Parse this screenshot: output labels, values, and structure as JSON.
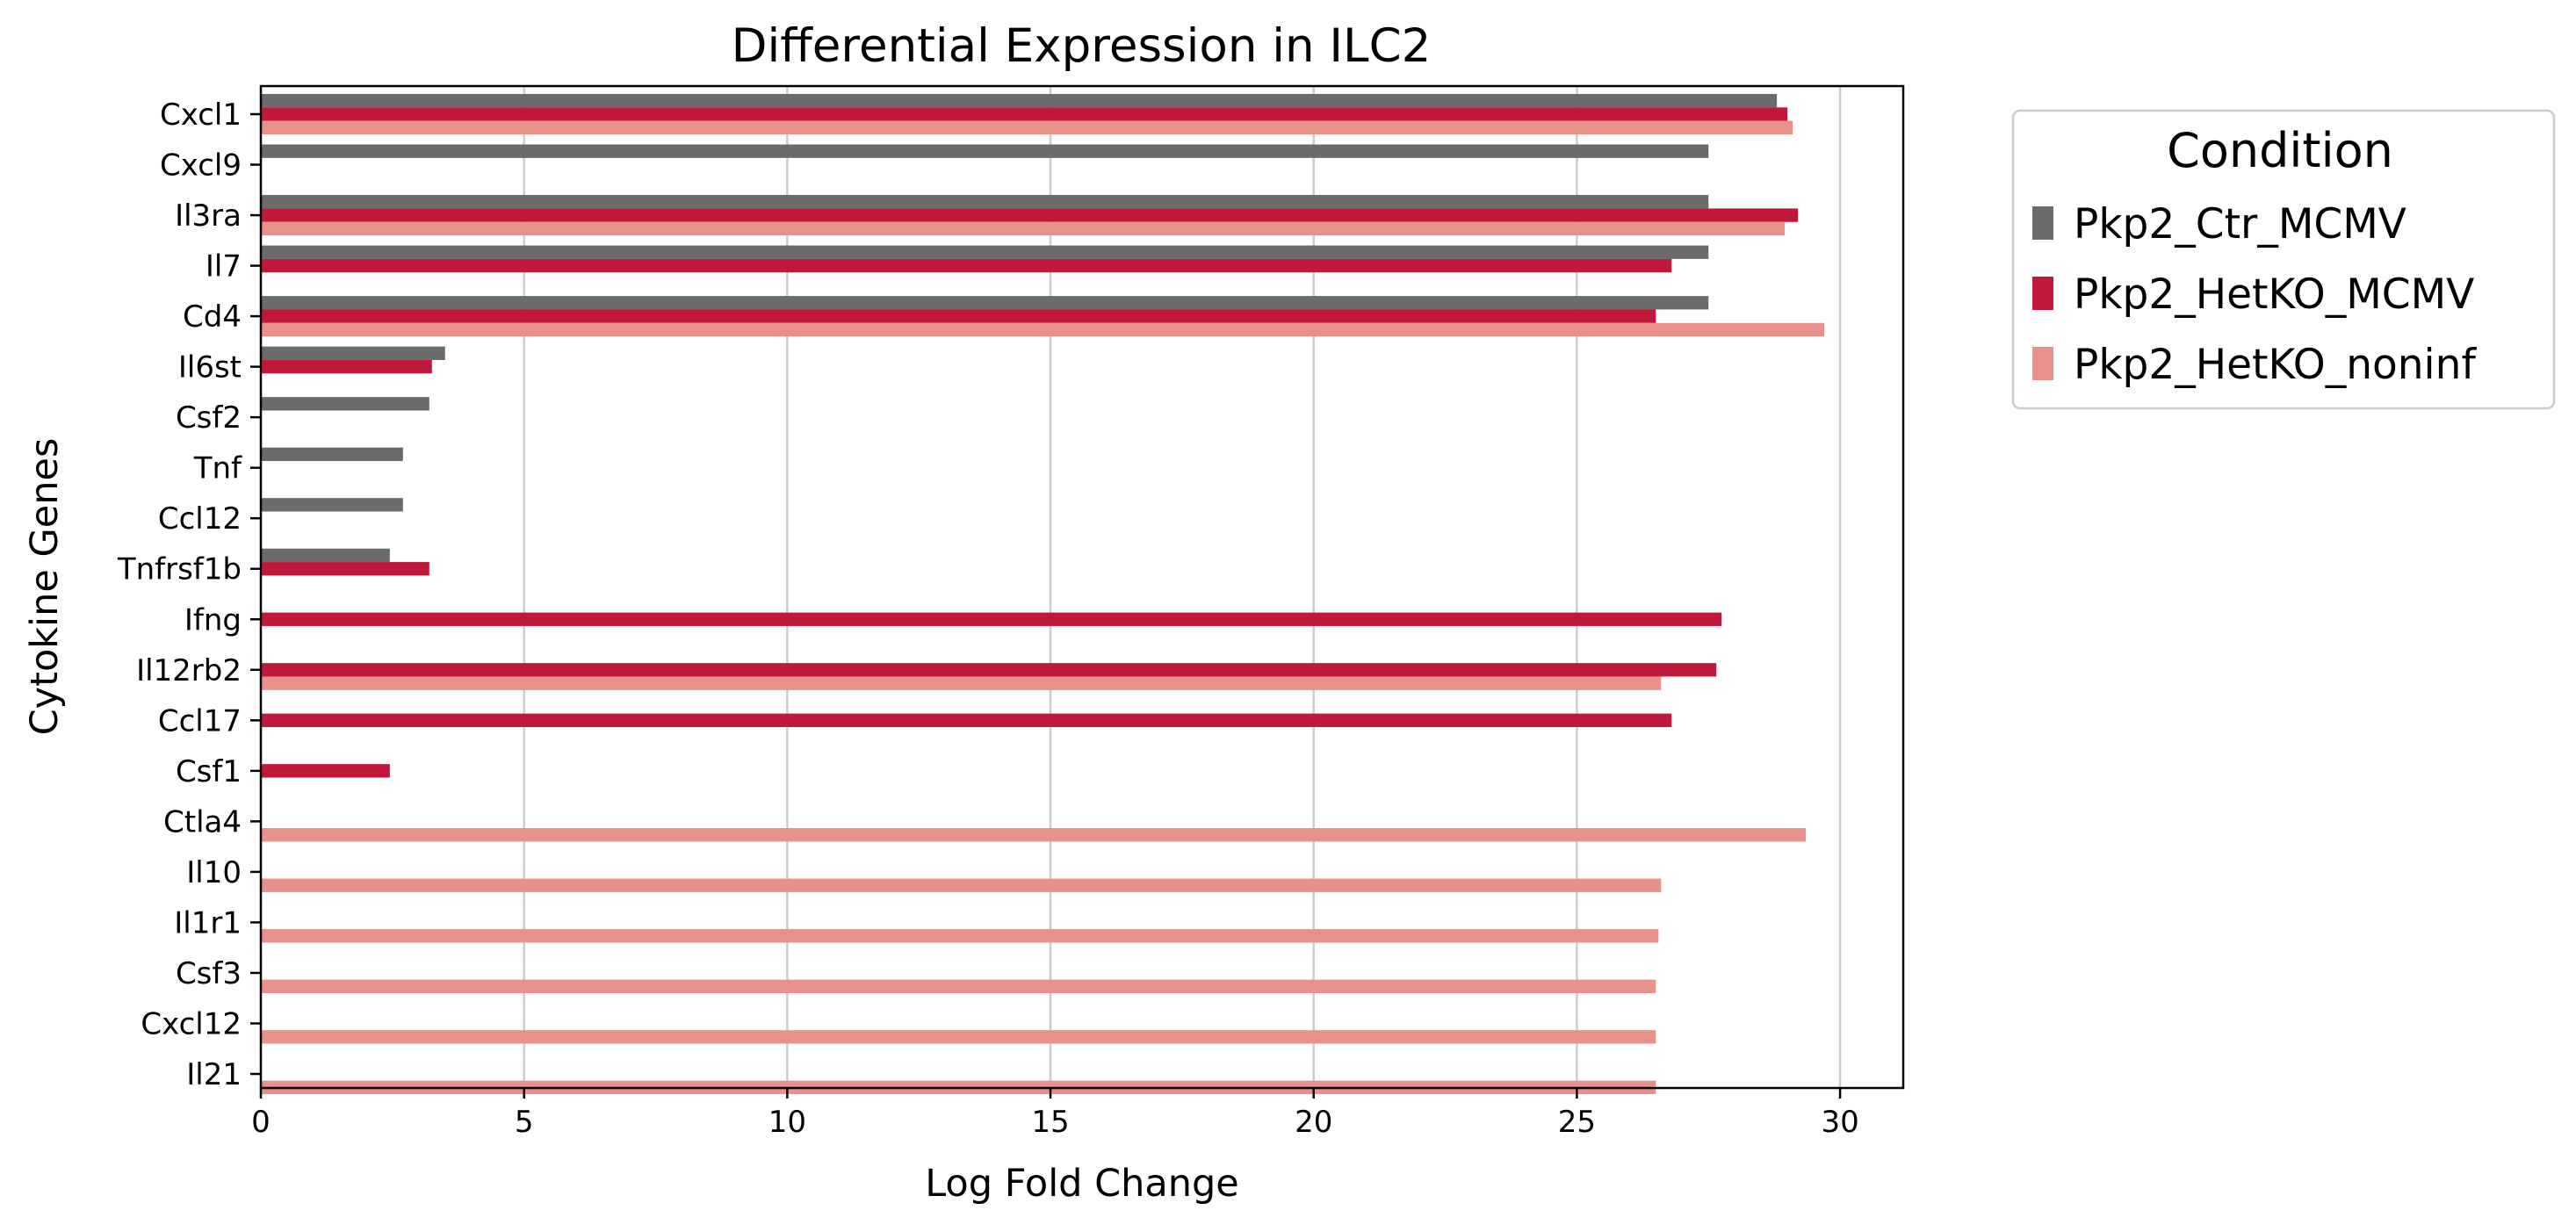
{
  "chart_data": {
    "type": "bar",
    "orientation": "horizontal",
    "title": "Differential Expression in ILC2",
    "xlabel": "Log Fold Change",
    "ylabel": "Cytokine Genes",
    "xlim": [
      0,
      31.2
    ],
    "xticks": [
      0,
      5,
      10,
      15,
      20,
      25,
      30
    ],
    "grid": "vertical",
    "legend_title": "Condition",
    "legend_position": "outside-right",
    "categories": [
      "Cxcl1",
      "Cxcl9",
      "Il3ra",
      "Il7",
      "Cd4",
      "Il6st",
      "Csf2",
      "Tnf",
      "Ccl12",
      "Tnfrsf1b",
      "Ifng",
      "Il12rb2",
      "Ccl17",
      "Csf1",
      "Ctla4",
      "Il10",
      "Il1r1",
      "Csf3",
      "Cxcl12",
      "Il21"
    ],
    "series": [
      {
        "name": "Pkp2_Ctr_MCMV",
        "color": "#6b6b6b",
        "values": [
          28.8,
          27.5,
          27.5,
          27.5,
          27.5,
          3.5,
          3.2,
          2.7,
          2.7,
          2.45,
          null,
          null,
          null,
          null,
          null,
          null,
          null,
          null,
          null,
          null
        ]
      },
      {
        "name": "Pkp2_HetKO_MCMV",
        "color": "#c0183b",
        "values": [
          29.0,
          null,
          29.2,
          26.8,
          26.5,
          3.25,
          null,
          null,
          null,
          3.2,
          27.75,
          27.65,
          26.8,
          2.45,
          null,
          null,
          null,
          null,
          null,
          null
        ]
      },
      {
        "name": "Pkp2_HetKO_noninf",
        "color": "#e8918a",
        "values": [
          29.1,
          null,
          28.95,
          null,
          29.7,
          null,
          null,
          null,
          null,
          null,
          null,
          26.6,
          null,
          null,
          29.35,
          26.6,
          26.55,
          26.5,
          26.5,
          26.5
        ]
      }
    ]
  }
}
